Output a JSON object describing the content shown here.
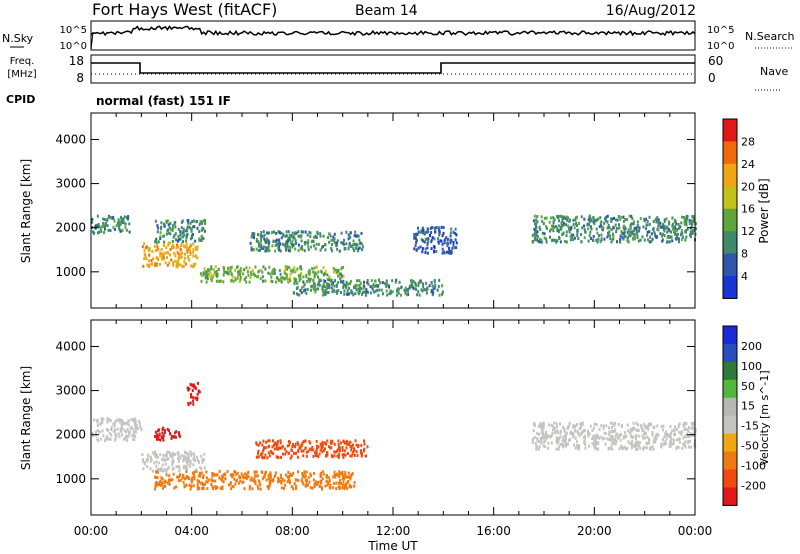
{
  "header": {
    "station": "Fort Hays West (fitACF)",
    "beam": "Beam 14",
    "date": "16/Aug/2012"
  },
  "aux_panels": {
    "nsky_label": "N.Sky",
    "nsky_ticks": [
      "10^5",
      "10^0"
    ],
    "nsearch_label": "N.Search",
    "nsearch_ticks": [
      "10^5",
      "10^0"
    ],
    "freq_label_1": "Freq.",
    "freq_label_2": "[MHz]",
    "freq_ticks": [
      "18",
      "8"
    ],
    "nave_label": "Nave",
    "nave_ticks": [
      "60",
      "0"
    ],
    "cpid_label": "CPID",
    "cpid_text": "normal (fast) 151 IF"
  },
  "colors": {
    "power_scale": [
      "#1a35d6",
      "#2f56a8",
      "#3f8a6a",
      "#5fa63a",
      "#c4c21a",
      "#f0a612",
      "#f06a0c",
      "#e01818"
    ],
    "velocity_scale": [
      "#e01818",
      "#f04a10",
      "#f07a10",
      "#f0a812",
      "#c4c4c0",
      "#b8b8b2",
      "#52b83a",
      "#2f7a3a",
      "#2a4ec0",
      "#1a2ad6"
    ]
  },
  "chart_data": [
    {
      "type": "heatmap",
      "name": "power",
      "ylabel": "Slant Range [km]",
      "xlabel": "",
      "colorbar_label": "Power [dB]",
      "colorbar_ticks": [
        "28",
        "24",
        "20",
        "16",
        "12",
        "8",
        "4"
      ],
      "x_ticks": [
        "00:00",
        "04:00",
        "08:00",
        "12:00",
        "16:00",
        "20:00",
        "00:00"
      ],
      "y_ticks": [
        "4000",
        "3000",
        "2000",
        "1000"
      ],
      "xlim": [
        0,
        24
      ],
      "ylim": [
        180,
        4600
      ],
      "echo_regions": [
        {
          "t": [
            0.0,
            1.5
          ],
          "range": [
            1900,
            2300
          ],
          "power": 8
        },
        {
          "t": [
            2.0,
            4.2
          ],
          "range": [
            1150,
            1700
          ],
          "power": 22
        },
        {
          "t": [
            2.5,
            4.5
          ],
          "range": [
            1700,
            2200
          ],
          "power": 10
        },
        {
          "t": [
            4.3,
            10.0
          ],
          "range": [
            800,
            1150
          ],
          "power": 12
        },
        {
          "t": [
            6.3,
            10.8
          ],
          "range": [
            1500,
            1950
          ],
          "power": 9
        },
        {
          "t": [
            8.0,
            14.0
          ],
          "range": [
            500,
            850
          ],
          "power": 8
        },
        {
          "t": [
            12.8,
            14.5
          ],
          "range": [
            1450,
            2050
          ],
          "power": 7
        },
        {
          "t": [
            17.5,
            24.0
          ],
          "range": [
            1700,
            2300
          ],
          "power": 8
        }
      ]
    },
    {
      "type": "heatmap",
      "name": "velocity",
      "ylabel": "Slant Range [km]",
      "xlabel": "Time UT",
      "colorbar_label": "Velocity [m s^-1]",
      "colorbar_ticks": [
        "200",
        "100",
        "50",
        "15",
        "-15",
        "-50",
        "-100",
        "-200"
      ],
      "x_ticks": [
        "00:00",
        "04:00",
        "08:00",
        "12:00",
        "16:00",
        "20:00",
        "00:00"
      ],
      "y_ticks": [
        "4000",
        "3000",
        "2000",
        "1000"
      ],
      "xlim": [
        0,
        24
      ],
      "ylim": [
        180,
        4600
      ],
      "echo_regions": [
        {
          "t": [
            0.0,
            2.0
          ],
          "range": [
            1900,
            2400
          ],
          "velocity": 0
        },
        {
          "t": [
            2.0,
            4.5
          ],
          "range": [
            1200,
            1650
          ],
          "velocity": 0
        },
        {
          "t": [
            2.5,
            3.5
          ],
          "range": [
            1900,
            2200
          ],
          "velocity": -200
        },
        {
          "t": [
            3.8,
            4.3
          ],
          "range": [
            2700,
            3200
          ],
          "velocity": -200
        },
        {
          "t": [
            2.5,
            10.5
          ],
          "range": [
            800,
            1200
          ],
          "velocity": -50
        },
        {
          "t": [
            6.5,
            11.0
          ],
          "range": [
            1500,
            1900
          ],
          "velocity": -100
        },
        {
          "t": [
            17.5,
            24.0
          ],
          "range": [
            1700,
            2300
          ],
          "velocity": 0
        }
      ]
    }
  ]
}
